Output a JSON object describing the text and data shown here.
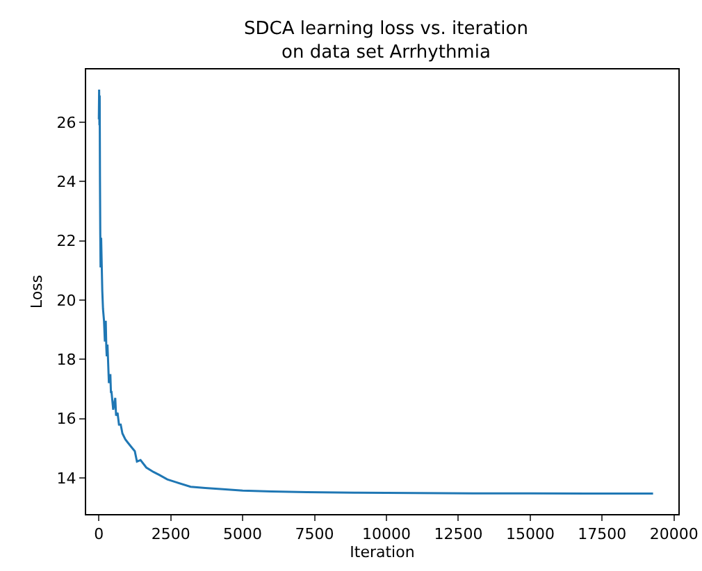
{
  "chart_data": {
    "type": "line",
    "title": "SDCA learning loss vs. iteration\non data set Arrhythmia",
    "xlabel": "Iteration",
    "ylabel": "Loss",
    "x": [
      0,
      10,
      20,
      30,
      40,
      50,
      60,
      80,
      100,
      120,
      145,
      180,
      210,
      240,
      260,
      275,
      300,
      350,
      400,
      420,
      440,
      500,
      570,
      600,
      650,
      700,
      760,
      820,
      920,
      1000,
      1165,
      1250,
      1325,
      1450,
      1650,
      1900,
      2100,
      2380,
      2700,
      3190,
      3700,
      4320,
      5000,
      6000,
      7230,
      9000,
      11000,
      13000,
      15000,
      17000,
      19270
    ],
    "series": [
      {
        "color": "#1f77b4",
        "values": [
          26.1,
          27.1,
          25.9,
          26.9,
          24.0,
          22.2,
          21.1,
          22.1,
          21.2,
          20.3,
          19.7,
          19.3,
          18.6,
          19.3,
          18.4,
          18.1,
          18.5,
          17.2,
          17.5,
          16.9,
          16.9,
          16.3,
          16.7,
          16.1,
          16.2,
          15.8,
          15.8,
          15.5,
          15.3,
          15.2,
          15.0,
          14.9,
          14.55,
          14.6,
          14.35,
          14.2,
          14.1,
          13.95,
          13.85,
          13.7,
          13.66,
          13.62,
          13.57,
          13.54,
          13.52,
          13.5,
          13.49,
          13.48,
          13.48,
          13.47,
          13.47
        ]
      }
    ],
    "xlim": [
      -440,
      20150
    ],
    "ylim": [
      12.78,
      27.78
    ],
    "xticks": [
      0,
      2500,
      5000,
      7500,
      10000,
      12500,
      15000,
      17500,
      20000
    ],
    "yticks": [
      14,
      16,
      18,
      20,
      22,
      24,
      26
    ],
    "grid": false,
    "legend": false
  }
}
